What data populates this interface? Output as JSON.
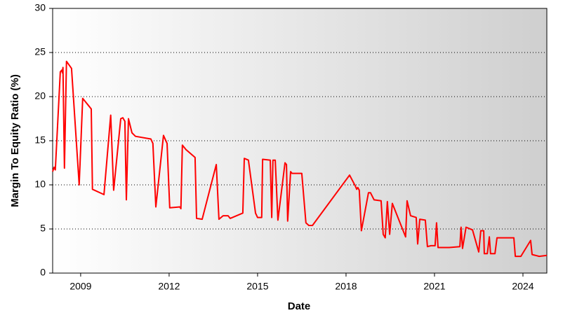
{
  "chart_data": {
    "type": "line",
    "x_label": "Date",
    "y_label": "Margin To Equity Ratio (%)",
    "xlim": [
      2008.05,
      2024.81
    ],
    "xticks": [
      2009,
      2012,
      2015,
      2018,
      2021,
      2024
    ],
    "ylim": [
      0,
      30
    ],
    "yticks": [
      0,
      5,
      10,
      15,
      20,
      25,
      30
    ],
    "grid": true,
    "series": [
      {
        "name": "Margin To Equity Ratio",
        "color": "#ff0000",
        "x": [
          2008.05,
          2008.1,
          2008.14,
          2008.31,
          2008.36,
          2008.38,
          2008.4,
          2008.45,
          2008.52,
          2008.69,
          2008.95,
          2009.07,
          2009.36,
          2009.4,
          2009.79,
          2010.02,
          2010.12,
          2010.36,
          2010.43,
          2010.5,
          2010.55,
          2010.62,
          2010.74,
          2010.86,
          2011.38,
          2011.45,
          2011.55,
          2011.81,
          2011.93,
          2012.02,
          2012.36,
          2012.4,
          2012.45,
          2012.57,
          2012.88,
          2012.93,
          2013.12,
          2013.6,
          2013.69,
          2013.83,
          2014.0,
          2014.07,
          2014.5,
          2014.55,
          2014.69,
          2014.93,
          2015.0,
          2015.14,
          2015.17,
          2015.43,
          2015.48,
          2015.52,
          2015.6,
          2015.69,
          2015.93,
          2015.98,
          2016.02,
          2016.12,
          2016.17,
          2016.5,
          2016.64,
          2016.74,
          2016.86,
          2018.12,
          2018.31,
          2018.36,
          2018.4,
          2018.45,
          2018.52,
          2018.76,
          2018.83,
          2018.95,
          2019.19,
          2019.26,
          2019.33,
          2019.4,
          2019.48,
          2019.57,
          2020.02,
          2020.07,
          2020.19,
          2020.38,
          2020.43,
          2020.5,
          2020.69,
          2020.76,
          2020.88,
          2021.02,
          2021.07,
          2021.12,
          2021.5,
          2021.86,
          2021.9,
          2021.95,
          2022.07,
          2022.29,
          2022.5,
          2022.57,
          2022.67,
          2022.69,
          2022.79,
          2022.86,
          2022.9,
          2023.05,
          2023.12,
          2023.69,
          2023.74,
          2023.93,
          2024.26,
          2024.31,
          2024.55,
          2024.81
        ],
        "values": [
          11.5,
          12,
          11.7,
          22.8,
          23,
          22.7,
          23.3,
          11.9,
          24,
          23.2,
          10,
          19.8,
          18.6,
          9.5,
          8.9,
          17.9,
          9.4,
          17.5,
          17.6,
          17.2,
          8.3,
          17.5,
          15.9,
          15.5,
          15.2,
          14.7,
          7.5,
          15.6,
          14.7,
          7.4,
          7.5,
          7.3,
          14.5,
          14,
          13.1,
          6.2,
          6.1,
          12.3,
          6.1,
          6.5,
          6.5,
          6.2,
          6.8,
          13,
          12.8,
          6.8,
          6.3,
          6.3,
          12.9,
          12.8,
          6.3,
          12.8,
          12.8,
          6,
          12.5,
          12.3,
          5.9,
          11.5,
          11.3,
          11.3,
          5.7,
          5.4,
          5.4,
          11.1,
          9.9,
          9.5,
          9.7,
          9.4,
          4.8,
          9.1,
          9.1,
          8.3,
          8.2,
          4.4,
          4,
          8.1,
          4.4,
          7.9,
          4.1,
          8.2,
          6.5,
          6.3,
          3.3,
          6.1,
          6,
          3,
          3.1,
          3.1,
          5.7,
          2.9,
          2.9,
          3,
          5.2,
          2.8,
          5.2,
          4.9,
          2.4,
          4.8,
          4.8,
          2.2,
          2.2,
          4.1,
          2.2,
          2.2,
          4,
          4,
          1.9,
          1.9,
          3.7,
          2.1,
          1.9,
          2
        ]
      }
    ]
  }
}
